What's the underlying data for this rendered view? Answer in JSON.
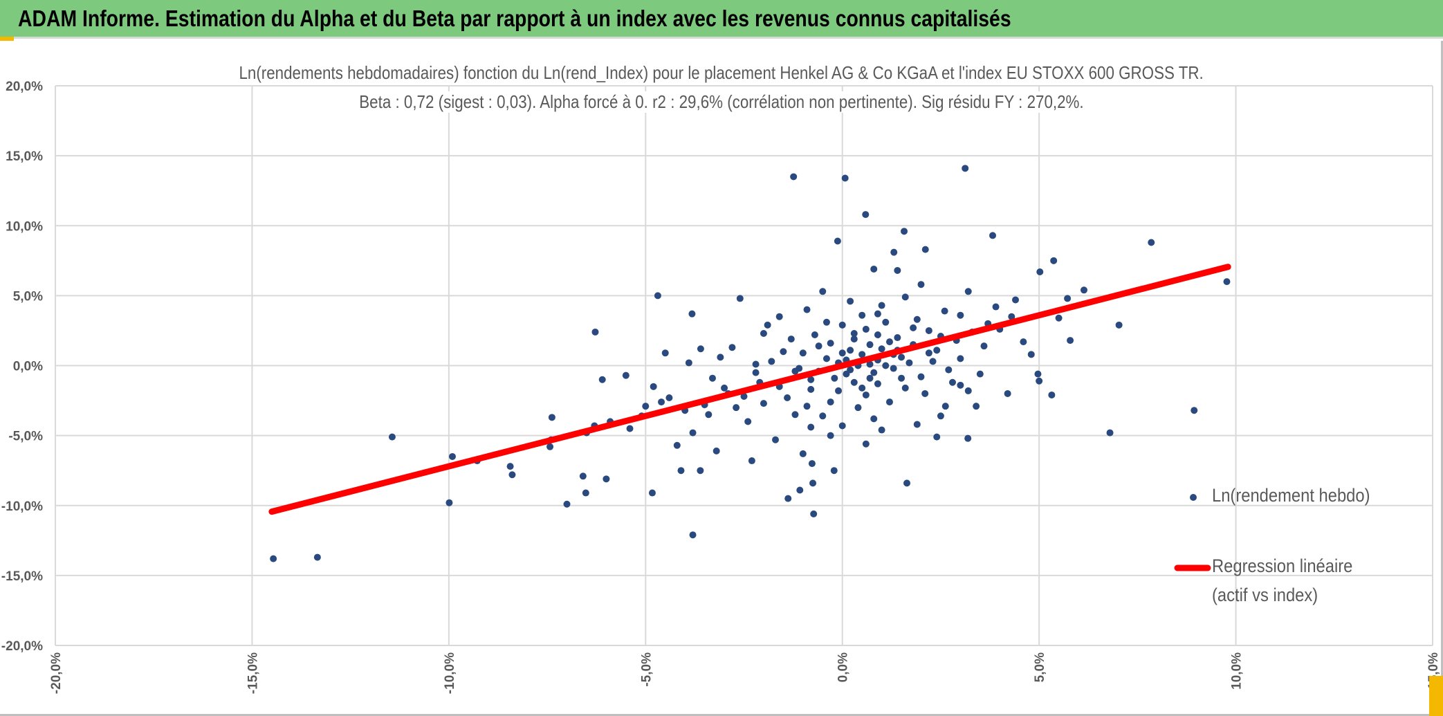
{
  "header": {
    "title": "ADAM Informe. Estimation du Alpha et du Beta par rapport à un index avec les revenus connus capitalisés"
  },
  "colors": {
    "header_bg": "#7dc97d",
    "points": "#2a4a7f",
    "regression": "#ff0000",
    "grid": "#d9d9d9",
    "accent": "#f5b800"
  },
  "chart_data": {
    "type": "scatter",
    "title": "Ln(rendements hebdomadaires) fonction du Ln(rend_Index) pour le placement Henkel AG & Co KGaA et l'index EU STOXX 600 GROSS TR.",
    "subtitle": "Beta : 0,72 (sigest : 0,03). Alpha forcé à 0. r2 : 29,6% (corrélation non pertinente). Sig résidu FY : 270,2%.",
    "xlabel": "",
    "ylabel": "",
    "xlim": [
      -20,
      15
    ],
    "ylim": [
      -20,
      20
    ],
    "x_ticks": [
      -20,
      -15,
      -10,
      -5,
      0,
      5,
      10,
      15
    ],
    "x_tick_labels": [
      "-20,0%",
      "-15,0%",
      "-10,0%",
      "-5,0%",
      "0,0%",
      "5,0%",
      "10,0%",
      "15,0%"
    ],
    "y_ticks": [
      20,
      15,
      10,
      5,
      0,
      -5,
      -10,
      -15,
      -20
    ],
    "y_tick_labels": [
      "20,0%",
      "15,0%",
      "10,0%",
      "5,0%",
      "0,0%",
      "-5,0%",
      "-10,0%",
      "-15,0%",
      "-20,0%"
    ],
    "grid": true,
    "legend_position": "right",
    "legend": [
      "Ln(rendement hebdo)",
      "Regression linéaire (actif vs index)"
    ],
    "legend_lines": [
      "Ln(rendement hebdo)",
      "Regression linéaire",
      "(actif vs index)"
    ],
    "regression": {
      "beta": 0.72,
      "alpha": 0,
      "x_range": [
        -14.5,
        9.8
      ]
    },
    "series": [
      {
        "name": "Ln(rendement hebdo)",
        "points": [
          [
            -1.24,
            13.5
          ],
          [
            0.07,
            13.4
          ],
          [
            3.12,
            14.1
          ],
          [
            0.59,
            10.8
          ],
          [
            1.57,
            9.6
          ],
          [
            3.82,
            9.3
          ],
          [
            7.85,
            8.8
          ],
          [
            9.77,
            6.0
          ],
          [
            -0.12,
            8.9
          ],
          [
            1.31,
            8.1
          ],
          [
            2.11,
            8.3
          ],
          [
            5.37,
            7.5
          ],
          [
            5.02,
            6.7
          ],
          [
            6.14,
            5.4
          ],
          [
            5.72,
            4.8
          ],
          [
            -4.69,
            5.0
          ],
          [
            -3.82,
            3.7
          ],
          [
            -6.28,
            2.4
          ],
          [
            7.03,
            2.9
          ],
          [
            5.79,
            1.8
          ],
          [
            -11.44,
            -5.1
          ],
          [
            -9.91,
            -6.5
          ],
          [
            -9.28,
            -6.8
          ],
          [
            -9.99,
            -9.8
          ],
          [
            -8.44,
            -7.2
          ],
          [
            -8.39,
            -7.8
          ],
          [
            -14.46,
            -13.8
          ],
          [
            -13.34,
            -13.7
          ],
          [
            -3.8,
            -12.1
          ],
          [
            -0.73,
            -10.6
          ],
          [
            -7.0,
            -9.9
          ],
          [
            -6.52,
            -9.1
          ],
          [
            -4.83,
            -9.1
          ],
          [
            -1.38,
            -9.5
          ],
          [
            -1.08,
            -8.9
          ],
          [
            -0.75,
            -8.4
          ],
          [
            1.64,
            -8.4
          ],
          [
            8.94,
            -3.2
          ],
          [
            6.8,
            -4.8
          ],
          [
            3.19,
            -5.2
          ],
          [
            5.32,
            -2.1
          ],
          [
            4.97,
            -0.6
          ],
          [
            -7.43,
            -5.8
          ],
          [
            -7.38,
            -3.7
          ],
          [
            -6.59,
            -7.9
          ],
          [
            -6.0,
            -8.1
          ],
          [
            -4.1,
            -7.5
          ],
          [
            -3.61,
            -7.5
          ],
          [
            -0.77,
            -7.0
          ],
          [
            -0.21,
            -7.5
          ],
          [
            3.0,
            -1.4
          ],
          [
            3.2,
            -1.8
          ],
          [
            2.62,
            -2.9
          ],
          [
            0.5,
            0.8
          ],
          [
            0.2,
            -0.3
          ],
          [
            -0.4,
            0.5
          ],
          [
            1.0,
            1.2
          ],
          [
            0.8,
            -0.5
          ],
          [
            -0.8,
            -1.0
          ],
          [
            1.5,
            0.6
          ],
          [
            0.3,
            1.9
          ],
          [
            -1.2,
            -0.4
          ],
          [
            0.6,
            2.6
          ],
          [
            -0.1,
            -1.8
          ],
          [
            1.8,
            1.5
          ],
          [
            2.2,
            0.9
          ],
          [
            -1.6,
            -1.5
          ],
          [
            0.9,
            -1.3
          ],
          [
            -0.6,
            1.4
          ],
          [
            1.3,
            -0.2
          ],
          [
            0.1,
            0.4
          ],
          [
            -2.1,
            -1.2
          ],
          [
            2.5,
            2.1
          ],
          [
            -0.3,
            -2.6
          ],
          [
            1.1,
            3.1
          ],
          [
            0.4,
            -3.0
          ],
          [
            -1.0,
            0.9
          ],
          [
            2.9,
            1.8
          ],
          [
            -2.5,
            -2.2
          ],
          [
            0.7,
            0.1
          ],
          [
            1.6,
            -1.6
          ],
          [
            -0.9,
            -2.9
          ],
          [
            0.0,
            2.9
          ],
          [
            -1.8,
            0.3
          ],
          [
            2.0,
            -0.8
          ],
          [
            3.3,
            2.4
          ],
          [
            -3.0,
            -1.6
          ],
          [
            0.5,
            3.6
          ],
          [
            -0.5,
            -3.6
          ],
          [
            1.4,
            2.0
          ],
          [
            -1.4,
            -2.3
          ],
          [
            2.7,
            -0.3
          ],
          [
            -2.7,
            -3.0
          ],
          [
            0.2,
            1.1
          ],
          [
            0.9,
            0.4
          ],
          [
            -0.2,
            -0.9
          ],
          [
            1.7,
            0.2
          ],
          [
            -1.1,
            -0.2
          ],
          [
            0.6,
            -2.1
          ],
          [
            1.2,
            1.7
          ],
          [
            -0.7,
            2.2
          ],
          [
            2.4,
            1.1
          ],
          [
            -2.2,
            0.1
          ],
          [
            3.7,
            3.0
          ],
          [
            -3.5,
            -2.8
          ],
          [
            0.3,
            -1.2
          ],
          [
            1.9,
            3.3
          ],
          [
            -1.5,
            1.0
          ],
          [
            2.1,
            -2.0
          ],
          [
            -0.4,
            3.1
          ],
          [
            0.8,
            -3.8
          ],
          [
            3.0,
            0.5
          ],
          [
            -3.3,
            -0.9
          ],
          [
            4.0,
            2.6
          ],
          [
            -4.0,
            -3.2
          ],
          [
            1.0,
            4.3
          ],
          [
            -0.8,
            -4.4
          ],
          [
            2.6,
            3.9
          ],
          [
            -2.4,
            -4.0
          ],
          [
            0.4,
            0.0
          ],
          [
            0.0,
            0.9
          ],
          [
            -0.1,
            0.2
          ],
          [
            0.7,
            1.5
          ],
          [
            1.3,
            0.8
          ],
          [
            0.1,
            -0.6
          ],
          [
            0.9,
            2.2
          ],
          [
            -0.6,
            -0.4
          ],
          [
            1.5,
            -0.9
          ],
          [
            0.5,
            -1.6
          ],
          [
            -1.3,
            1.9
          ],
          [
            1.8,
            2.7
          ],
          [
            2.3,
            0.3
          ],
          [
            -2.0,
            -2.7
          ],
          [
            4.3,
            3.5
          ],
          [
            -4.4,
            -2.3
          ],
          [
            3.5,
            -0.6
          ],
          [
            -3.8,
            -4.8
          ],
          [
            4.6,
            1.7
          ],
          [
            -4.8,
            -1.5
          ],
          [
            3.9,
            4.2
          ],
          [
            -3.9,
            0.2
          ],
          [
            1.2,
            -2.6
          ],
          [
            -1.9,
            2.9
          ],
          [
            2.8,
            -1.2
          ],
          [
            -2.8,
            1.3
          ],
          [
            0.2,
            4.6
          ],
          [
            -0.3,
            -5.0
          ],
          [
            1.6,
            4.9
          ],
          [
            -1.7,
            -5.3
          ],
          [
            5.5,
            3.4
          ],
          [
            -5.4,
            -4.5
          ],
          [
            4.8,
            0.8
          ],
          [
            -5.0,
            -2.9
          ],
          [
            -5.9,
            -4.0
          ],
          [
            -6.3,
            -4.3
          ],
          [
            -6.1,
            -1.0
          ],
          [
            -5.5,
            -0.7
          ],
          [
            -4.5,
            0.9
          ],
          [
            -3.6,
            1.2
          ],
          [
            -4.2,
            -5.7
          ],
          [
            -3.2,
            -6.1
          ],
          [
            -2.3,
            -6.8
          ],
          [
            -1.0,
            -6.3
          ],
          [
            0.6,
            -5.6
          ],
          [
            1.9,
            -4.2
          ],
          [
            2.4,
            -5.1
          ],
          [
            3.4,
            -2.9
          ],
          [
            4.2,
            -2.0
          ],
          [
            5.0,
            -1.1
          ],
          [
            4.4,
            4.7
          ],
          [
            3.2,
            5.3
          ],
          [
            2.0,
            5.8
          ],
          [
            1.4,
            6.8
          ],
          [
            0.8,
            6.9
          ],
          [
            -0.9,
            4.0
          ],
          [
            -1.6,
            3.5
          ],
          [
            -2.6,
            4.8
          ],
          [
            -2.0,
            2.3
          ],
          [
            3.6,
            1.4
          ],
          [
            2.5,
            -3.6
          ],
          [
            1.0,
            -4.6
          ],
          [
            -0.5,
            5.3
          ],
          [
            0.0,
            -4.3
          ],
          [
            -1.2,
            -3.5
          ],
          [
            -2.9,
            -2.0
          ],
          [
            -3.4,
            -3.5
          ],
          [
            -4.6,
            -2.6
          ],
          [
            -5.1,
            -3.6
          ],
          [
            -6.5,
            -4.8
          ],
          [
            -7.4,
            -5.3
          ],
          [
            -3.1,
            0.6
          ],
          [
            -2.2,
            -0.5
          ],
          [
            1.1,
            0.0
          ],
          [
            0.3,
            2.3
          ],
          [
            0.7,
            -0.9
          ],
          [
            1.4,
            1.1
          ],
          [
            -0.3,
            1.6
          ],
          [
            2.2,
            2.5
          ],
          [
            3.0,
            3.6
          ],
          [
            0.9,
            3.7
          ],
          [
            -0.8,
            -1.7
          ]
        ]
      }
    ]
  }
}
